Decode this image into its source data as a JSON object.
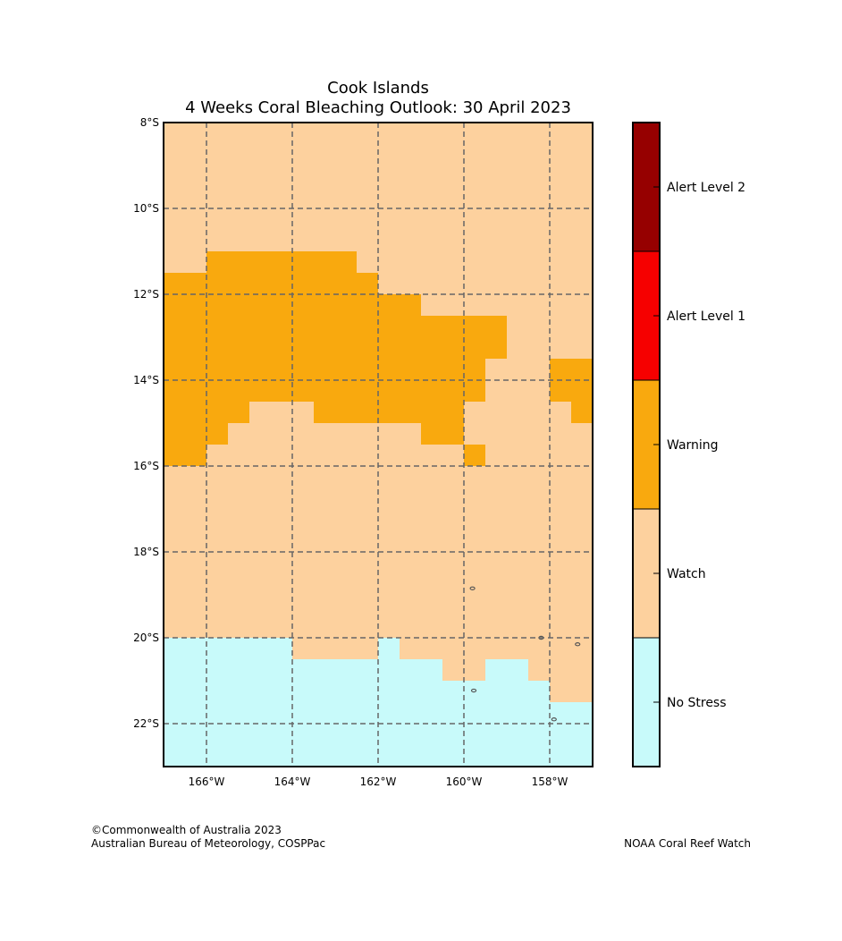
{
  "title": {
    "line1": "Cook Islands",
    "line2": "4 Weeks Coral Bleaching Outlook: 30 April 2023"
  },
  "map": {
    "lon_range": [
      -167,
      -157
    ],
    "lat_range": [
      -23,
      -8
    ],
    "cell_size_deg": 0.5,
    "lat_ticks": [
      {
        "value": -8,
        "label": "8°S"
      },
      {
        "value": -10,
        "label": "10°S"
      },
      {
        "value": -12,
        "label": "12°S"
      },
      {
        "value": -14,
        "label": "14°S"
      },
      {
        "value": -16,
        "label": "16°S"
      },
      {
        "value": -18,
        "label": "18°S"
      },
      {
        "value": -20,
        "label": "20°S"
      },
      {
        "value": -22,
        "label": "22°S"
      }
    ],
    "lon_ticks": [
      {
        "value": -166,
        "label": "166°W"
      },
      {
        "value": -164,
        "label": "164°W"
      },
      {
        "value": -162,
        "label": "162°W"
      },
      {
        "value": -160,
        "label": "160°W"
      },
      {
        "value": -158,
        "label": "158°W"
      }
    ],
    "colors": {
      "no_stress": "#c8fafa",
      "watch": "#fdd19e",
      "warning": "#f9a90e",
      "alert1": "#f60000",
      "alert2": "#960000",
      "grid": "#666666",
      "island": "#555555"
    },
    "warning_region_rows": [
      {
        "lat": [
          -11.5,
          -11.0
        ],
        "lon": [
          -166.0,
          -162.5
        ]
      },
      {
        "lat": [
          -12.0,
          -11.5
        ],
        "lon": [
          -167.0,
          -162.0
        ]
      },
      {
        "lat": [
          -12.5,
          -12.0
        ],
        "lon": [
          -167.0,
          -161.0
        ]
      },
      {
        "lat": [
          -13.5,
          -12.5
        ],
        "lon": [
          -167.0,
          -159.0
        ]
      },
      {
        "lat": [
          -14.5,
          -13.5
        ],
        "lon": [
          -167.0,
          -159.5
        ]
      },
      {
        "lat": [
          -14.5,
          -13.5
        ],
        "lon": [
          -158.0,
          -157.0
        ]
      },
      {
        "lat": [
          -15.0,
          -14.5
        ],
        "lon": [
          -167.0,
          -165.0
        ]
      },
      {
        "lat": [
          -15.0,
          -14.5
        ],
        "lon": [
          -163.5,
          -160.0
        ]
      },
      {
        "lat": [
          -15.0,
          -14.5
        ],
        "lon": [
          -157.5,
          -157.0
        ]
      },
      {
        "lat": [
          -15.5,
          -15.0
        ],
        "lon": [
          -167.0,
          -165.5
        ]
      },
      {
        "lat": [
          -15.5,
          -15.0
        ],
        "lon": [
          -161.0,
          -160.0
        ]
      },
      {
        "lat": [
          -16.0,
          -15.5
        ],
        "lon": [
          -167.0,
          -166.0
        ]
      },
      {
        "lat": [
          -16.0,
          -15.5
        ],
        "lon": [
          -160.0,
          -159.5
        ]
      }
    ],
    "no_stress_region_rows": [
      {
        "lat": [
          -20.5,
          -20.0
        ],
        "lon": [
          -167.0,
          -164.0
        ]
      },
      {
        "lat": [
          -20.5,
          -20.0
        ],
        "lon": [
          -162.0,
          -161.5
        ]
      },
      {
        "lat": [
          -21.0,
          -20.5
        ],
        "lon": [
          -167.0,
          -160.5
        ]
      },
      {
        "lat": [
          -21.0,
          -20.5
        ],
        "lon": [
          -159.5,
          -158.5
        ]
      },
      {
        "lat": [
          -21.5,
          -21.0
        ],
        "lon": [
          -167.0,
          -158.0
        ]
      },
      {
        "lat": [
          -23.0,
          -21.5
        ],
        "lon": [
          -167.0,
          -157.0
        ]
      }
    ],
    "islands": [
      {
        "lon": -159.8,
        "lat": -18.85
      },
      {
        "lon": -158.2,
        "lat": -20.0
      },
      {
        "lon": -157.35,
        "lat": -20.15
      },
      {
        "lon": -159.77,
        "lat": -21.23
      },
      {
        "lon": -157.9,
        "lat": -21.9
      }
    ]
  },
  "legend": {
    "levels": [
      {
        "label": "Alert Level 2",
        "color": "#960000"
      },
      {
        "label": "Alert Level 1",
        "color": "#f60000"
      },
      {
        "label": "Warning",
        "color": "#f9a90e"
      },
      {
        "label": "Watch",
        "color": "#fdd19e"
      },
      {
        "label": "No Stress",
        "color": "#c8fafa"
      }
    ]
  },
  "footer": {
    "left_line1": "©Commonwealth of Australia 2023",
    "left_line2": "Australian Bureau of Meteorology, COSPPac",
    "right": "NOAA Coral Reef Watch"
  }
}
